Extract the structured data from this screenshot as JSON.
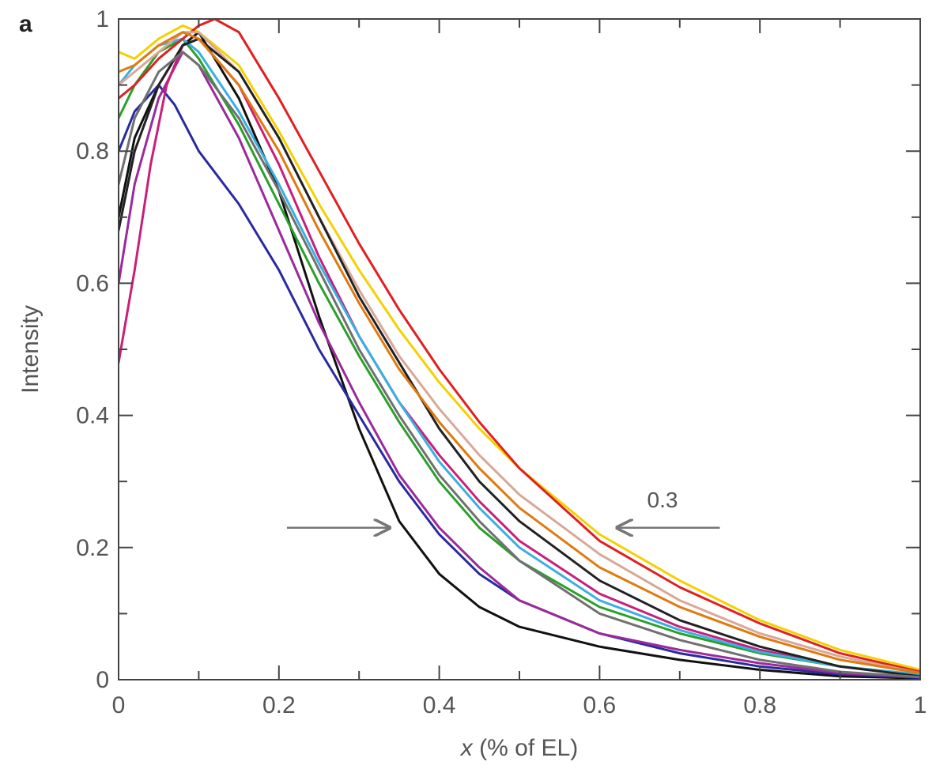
{
  "panel_label": "a",
  "chart_data": {
    "type": "line",
    "xlabel": "x (% of EL)",
    "xlabel_parts": {
      "symbol": "x",
      "rest": "(% of EL)"
    },
    "ylabel": "Intensity",
    "xlim": [
      0,
      1
    ],
    "ylim": [
      0,
      1
    ],
    "x_ticks": [
      0,
      0.2,
      0.4,
      0.6,
      0.8,
      1
    ],
    "x_tick_labels": [
      "0",
      "0.2",
      "0.4",
      "0.6",
      "0.8",
      "1"
    ],
    "y_ticks": [
      0,
      0.2,
      0.4,
      0.6,
      0.8,
      1
    ],
    "y_tick_labels": [
      "0",
      "0.2",
      "0.4",
      "0.6",
      "0.8",
      "1"
    ],
    "minor_tick_step": 0.1,
    "grid": false,
    "legend": "none",
    "annotation": {
      "label": "0.3",
      "left_arrow": {
        "from": [
          0.21,
          0.23
        ],
        "to": [
          0.34,
          0.23
        ]
      },
      "right_arrow": {
        "from": [
          0.75,
          0.23
        ],
        "to": [
          0.62,
          0.23
        ]
      }
    },
    "series": [
      {
        "color": "#111111",
        "x": [
          0,
          0.02,
          0.05,
          0.08,
          0.1,
          0.15,
          0.2,
          0.25,
          0.3,
          0.35,
          0.4,
          0.45,
          0.5,
          0.6,
          0.7,
          0.8,
          0.9,
          1.0
        ],
        "y": [
          0.7,
          0.82,
          0.9,
          0.96,
          0.98,
          0.88,
          0.74,
          0.55,
          0.38,
          0.24,
          0.16,
          0.11,
          0.08,
          0.05,
          0.03,
          0.015,
          0.005,
          0.002
        ]
      },
      {
        "color": "#2a2aa0",
        "x": [
          0,
          0.02,
          0.05,
          0.07,
          0.1,
          0.15,
          0.2,
          0.25,
          0.3,
          0.35,
          0.4,
          0.45,
          0.5,
          0.6,
          0.7,
          0.8,
          0.9,
          1.0
        ],
        "y": [
          0.8,
          0.86,
          0.9,
          0.87,
          0.8,
          0.72,
          0.62,
          0.5,
          0.4,
          0.3,
          0.22,
          0.16,
          0.12,
          0.07,
          0.04,
          0.02,
          0.008,
          0.003
        ]
      },
      {
        "color": "#9b2a9b",
        "x": [
          0,
          0.02,
          0.05,
          0.08,
          0.1,
          0.15,
          0.2,
          0.25,
          0.3,
          0.35,
          0.4,
          0.45,
          0.5,
          0.6,
          0.7,
          0.8,
          0.9,
          1.0
        ],
        "y": [
          0.6,
          0.75,
          0.88,
          0.95,
          0.93,
          0.82,
          0.68,
          0.54,
          0.42,
          0.31,
          0.23,
          0.17,
          0.12,
          0.07,
          0.045,
          0.025,
          0.01,
          0.004
        ]
      },
      {
        "color": "#c8207a",
        "x": [
          0,
          0.02,
          0.04,
          0.06,
          0.08,
          0.1,
          0.15,
          0.2,
          0.25,
          0.3,
          0.35,
          0.4,
          0.45,
          0.5,
          0.6,
          0.7,
          0.8,
          0.9,
          1.0
        ],
        "y": [
          0.48,
          0.62,
          0.78,
          0.9,
          0.96,
          0.97,
          0.9,
          0.78,
          0.64,
          0.52,
          0.42,
          0.34,
          0.27,
          0.21,
          0.13,
          0.08,
          0.045,
          0.02,
          0.006
        ]
      },
      {
        "color": "#2aa02a",
        "x": [
          0,
          0.02,
          0.05,
          0.08,
          0.1,
          0.15,
          0.2,
          0.25,
          0.3,
          0.35,
          0.4,
          0.45,
          0.5,
          0.6,
          0.7,
          0.8,
          0.9,
          1.0
        ],
        "y": [
          0.85,
          0.9,
          0.95,
          0.97,
          0.94,
          0.84,
          0.72,
          0.6,
          0.49,
          0.39,
          0.3,
          0.23,
          0.18,
          0.11,
          0.07,
          0.04,
          0.02,
          0.007
        ]
      },
      {
        "color": "#3ab0e0",
        "x": [
          0,
          0.02,
          0.05,
          0.08,
          0.1,
          0.15,
          0.2,
          0.25,
          0.3,
          0.35,
          0.4,
          0.45,
          0.5,
          0.6,
          0.7,
          0.8,
          0.9,
          1.0
        ],
        "y": [
          0.9,
          0.93,
          0.96,
          0.97,
          0.95,
          0.86,
          0.75,
          0.63,
          0.52,
          0.42,
          0.33,
          0.26,
          0.2,
          0.12,
          0.075,
          0.042,
          0.02,
          0.008
        ]
      },
      {
        "color": "#f5d000",
        "x": [
          0,
          0.02,
          0.05,
          0.08,
          0.1,
          0.15,
          0.2,
          0.25,
          0.3,
          0.35,
          0.4,
          0.45,
          0.5,
          0.6,
          0.7,
          0.8,
          0.9,
          1.0
        ],
        "y": [
          0.95,
          0.94,
          0.97,
          0.99,
          0.98,
          0.93,
          0.83,
          0.72,
          0.62,
          0.53,
          0.45,
          0.38,
          0.32,
          0.22,
          0.15,
          0.09,
          0.045,
          0.015
        ]
      },
      {
        "color": "#e02020",
        "x": [
          0,
          0.02,
          0.05,
          0.08,
          0.1,
          0.12,
          0.15,
          0.2,
          0.25,
          0.3,
          0.35,
          0.4,
          0.45,
          0.5,
          0.6,
          0.7,
          0.8,
          0.9,
          1.0
        ],
        "y": [
          0.88,
          0.9,
          0.94,
          0.97,
          0.99,
          1.0,
          0.98,
          0.88,
          0.77,
          0.66,
          0.56,
          0.47,
          0.39,
          0.32,
          0.21,
          0.14,
          0.085,
          0.04,
          0.012
        ]
      },
      {
        "color": "#d8a898",
        "x": [
          0,
          0.02,
          0.05,
          0.08,
          0.1,
          0.15,
          0.2,
          0.25,
          0.3,
          0.35,
          0.4,
          0.45,
          0.5,
          0.6,
          0.7,
          0.8,
          0.9,
          1.0
        ],
        "y": [
          0.9,
          0.92,
          0.95,
          0.98,
          0.98,
          0.92,
          0.82,
          0.7,
          0.59,
          0.49,
          0.41,
          0.34,
          0.28,
          0.19,
          0.12,
          0.07,
          0.035,
          0.01
        ]
      },
      {
        "color": "#222222",
        "x": [
          0,
          0.02,
          0.05,
          0.08,
          0.1,
          0.15,
          0.2,
          0.25,
          0.3,
          0.35,
          0.4,
          0.45,
          0.5,
          0.6,
          0.7,
          0.8,
          0.9,
          1.0
        ],
        "y": [
          0.68,
          0.8,
          0.9,
          0.96,
          0.97,
          0.92,
          0.82,
          0.7,
          0.58,
          0.48,
          0.38,
          0.3,
          0.24,
          0.15,
          0.09,
          0.05,
          0.02,
          0.005
        ]
      },
      {
        "color": "#e07a10",
        "x": [
          0,
          0.02,
          0.05,
          0.08,
          0.1,
          0.15,
          0.2,
          0.25,
          0.3,
          0.35,
          0.4,
          0.45,
          0.5,
          0.6,
          0.7,
          0.8,
          0.9,
          1.0
        ],
        "y": [
          0.92,
          0.93,
          0.96,
          0.98,
          0.97,
          0.9,
          0.8,
          0.68,
          0.57,
          0.47,
          0.39,
          0.32,
          0.26,
          0.17,
          0.11,
          0.065,
          0.03,
          0.01
        ]
      },
      {
        "color": "#707070",
        "x": [
          0,
          0.02,
          0.05,
          0.08,
          0.1,
          0.15,
          0.2,
          0.25,
          0.3,
          0.35,
          0.4,
          0.45,
          0.5,
          0.6,
          0.7,
          0.8,
          0.9,
          1.0
        ],
        "y": [
          0.75,
          0.85,
          0.92,
          0.95,
          0.93,
          0.85,
          0.74,
          0.62,
          0.5,
          0.4,
          0.31,
          0.24,
          0.18,
          0.1,
          0.06,
          0.03,
          0.012,
          0.004
        ]
      }
    ]
  }
}
